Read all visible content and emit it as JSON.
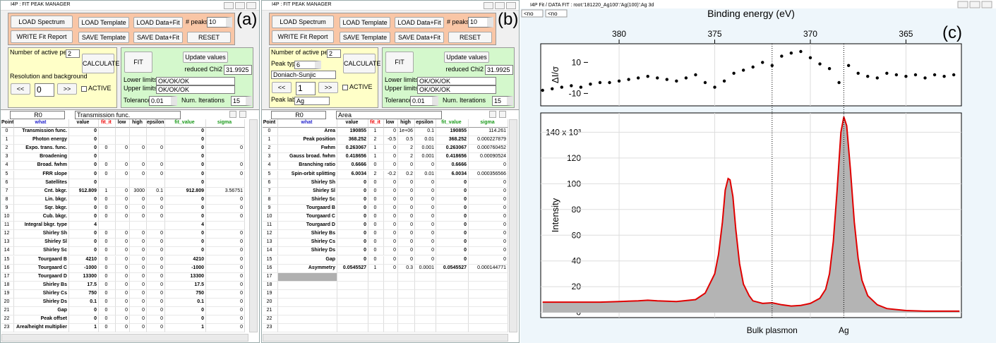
{
  "panel_a": {
    "window_title": "I4P : FIT PEAK MANAGER",
    "label": "(a)",
    "buttons": {
      "load_spectrum": "LOAD Spectrum",
      "write_report": "WRITE Fit Report",
      "load_template": "LOAD Template",
      "save_template": "SAVE Template",
      "load_data_fit": "LOAD Data+Fit",
      "save_data_fit": "SAVE Data+Fit",
      "reset": "RESET",
      "calculate": "CALCULATE",
      "prev": "<<",
      "next": ">>",
      "fit": "FIT",
      "update": "Update values"
    },
    "fields": {
      "peaks_label": "# peaks",
      "peaks": 10,
      "active_peaks_label": "Number of active peaks",
      "active_peaks": 2,
      "section_label": "Resolution and background",
      "index": 0,
      "active_label": "ACTIVE",
      "chi2_label": "reduced Chi2",
      "chi2": 31.9925,
      "lower_label": "Lower limits",
      "lower": "OK/OK/OK",
      "upper_label": "Upper limits",
      "upper": "OK/OK/OK",
      "tolerance_label": "Tolerance",
      "tolerance": 0.01,
      "iterations_label": "Num. Iterations",
      "iterations": 15
    },
    "table": {
      "cell": "R0",
      "selection": "Transmission func.",
      "columns": [
        "Point",
        "what",
        "value",
        "fit_it",
        "low",
        "high",
        "epsilon",
        "fit_value",
        "sigma"
      ],
      "rows": [
        [
          0,
          "Transmission func.",
          0,
          null,
          null,
          null,
          null,
          0,
          null
        ],
        [
          1,
          "Photon energy",
          0,
          null,
          null,
          null,
          null,
          0,
          null
        ],
        [
          2,
          "Expo. trans. func.",
          0,
          0,
          0,
          0,
          0,
          0,
          0
        ],
        [
          3,
          "Broadening",
          0,
          null,
          null,
          null,
          null,
          0,
          null
        ],
        [
          4,
          "Broad. fwhm",
          0,
          0,
          0,
          0,
          0,
          0,
          0
        ],
        [
          5,
          "FRR slope",
          0,
          0,
          0,
          0,
          0,
          0,
          0
        ],
        [
          6,
          "Satellites",
          0,
          null,
          null,
          null,
          null,
          0,
          null
        ],
        [
          7,
          "Cnt. bkgr.",
          912.809,
          1,
          0,
          3000,
          0.1,
          912.809,
          3.56751
        ],
        [
          8,
          "Lin. bkgr.",
          0,
          0,
          0,
          0,
          0,
          0,
          0
        ],
        [
          9,
          "Sqr. bkgr.",
          0,
          0,
          0,
          0,
          0,
          0,
          0
        ],
        [
          10,
          "Cub. bkgr.",
          0,
          0,
          0,
          0,
          0,
          0,
          0
        ],
        [
          11,
          "Integral bkgr. type",
          4,
          null,
          null,
          null,
          null,
          4,
          null
        ],
        [
          12,
          "Shirley Sh",
          0,
          0,
          0,
          0,
          0,
          0,
          0
        ],
        [
          13,
          "Shirley Sl",
          0,
          0,
          0,
          0,
          0,
          0,
          0
        ],
        [
          14,
          "Shirley Sc",
          0,
          0,
          0,
          0,
          0,
          0,
          0
        ],
        [
          15,
          "Tourgaard B",
          4210,
          0,
          0,
          0,
          0,
          4210,
          0
        ],
        [
          16,
          "Tourgaard C",
          -1000,
          0,
          0,
          0,
          0,
          -1000,
          0
        ],
        [
          17,
          "Tourgaard D",
          13300,
          0,
          0,
          0,
          0,
          13300,
          0
        ],
        [
          18,
          "Shirley Bs",
          17.5,
          0,
          0,
          0,
          0,
          17.5,
          0
        ],
        [
          19,
          "Shirley Cs",
          750,
          0,
          0,
          0,
          0,
          750,
          0
        ],
        [
          20,
          "Shirley Ds",
          0.1,
          0,
          0,
          0,
          0,
          0.1,
          0
        ],
        [
          21,
          "Gap",
          0,
          0,
          0,
          0,
          0,
          0,
          0
        ],
        [
          22,
          "Peak offset",
          0,
          0,
          0,
          0,
          0,
          0,
          0
        ],
        [
          23,
          "Area/height multiplier",
          1,
          0,
          0,
          0,
          0,
          1,
          0
        ]
      ]
    }
  },
  "panel_b": {
    "window_title": "I4P : FIT PEAK MANAGER",
    "label": "(b)",
    "buttons": {
      "load_spectrum": "LOAD Spectrum",
      "write_report": "WRITE Fit Report",
      "load_template": "LOAD Template",
      "save_template": "SAVE Template",
      "load_data_fit": "LOAD Data+Fit",
      "save_data_fit": "SAVE Data+Fit",
      "reset": "RESET",
      "calculate": "CALCULATE",
      "prev": "<<",
      "next": ">>",
      "fit": "FIT",
      "update": "Update values"
    },
    "fields": {
      "peaks_label": "# peaks",
      "peaks": 10,
      "active_peaks_label": "Number of active peaks",
      "active_peaks": 2,
      "peak_type_label": "Peak type",
      "peak_type": 6,
      "peak_shape": "Doniach-Sunjic",
      "index": 1,
      "active_label": "ACTIVE",
      "peak_label_label": "Peak label",
      "peak_label": "Ag",
      "chi2_label": "reduced Chi2",
      "chi2": 31.9925,
      "lower_label": "Lower limits",
      "lower": "OK/OK/OK",
      "upper_label": "Upper limits",
      "upper": "OK/OK/OK",
      "tolerance_label": "Tolerance",
      "tolerance": 0.01,
      "iterations_label": "Num. Iterations",
      "iterations": 15
    },
    "table": {
      "cell": "R0",
      "selection": "Area",
      "columns": [
        "Point",
        "what",
        "value",
        "fit_it",
        "low",
        "high",
        "epsilon",
        "fit_value",
        "sigma"
      ],
      "rows": [
        [
          0,
          "Area",
          190855,
          1,
          0,
          "1e+06",
          0.1,
          190855,
          114.261
        ],
        [
          1,
          "Peak position",
          368.252,
          2,
          -0.5,
          0.5,
          0.01,
          368.252,
          0.000227879
        ],
        [
          2,
          "Fwhm",
          0.263067,
          1,
          0,
          2,
          0.001,
          0.263067,
          0.000760452
        ],
        [
          3,
          "Gauss broad. fwhm",
          0.418656,
          1,
          0,
          2,
          0.001,
          0.418656,
          0.00090524
        ],
        [
          4,
          "Branching ratio",
          0.6666,
          0,
          0,
          0,
          0,
          0.6666,
          0
        ],
        [
          5,
          "Spin-orbit splitting",
          6.0034,
          2,
          -0.2,
          0.2,
          0.01,
          6.0034,
          0.000356566
        ],
        [
          6,
          "Shirley Sh",
          0,
          0,
          0,
          0,
          0,
          0,
          0
        ],
        [
          7,
          "Shirley Sl",
          0,
          0,
          0,
          0,
          0,
          0,
          0
        ],
        [
          8,
          "Shirley Sc",
          0,
          0,
          0,
          0,
          0,
          0,
          0
        ],
        [
          9,
          "Tourgaard B",
          0,
          0,
          0,
          0,
          0,
          0,
          0
        ],
        [
          10,
          "Tourgaard C",
          0,
          0,
          0,
          0,
          0,
          0,
          0
        ],
        [
          11,
          "Tourgaard D",
          0,
          0,
          0,
          0,
          0,
          0,
          0
        ],
        [
          12,
          "Shirley Bs",
          0,
          0,
          0,
          0,
          0,
          0,
          0
        ],
        [
          13,
          "Shirley Cs",
          0,
          0,
          0,
          0,
          0,
          0,
          0
        ],
        [
          14,
          "Shirley Ds",
          0,
          0,
          0,
          0,
          0,
          0,
          0
        ],
        [
          15,
          "Gap",
          0,
          0,
          0,
          0,
          0,
          0,
          0
        ],
        [
          16,
          "Asymmetry",
          0.0545527,
          1,
          0,
          0.3,
          0.0001,
          0.0545527,
          0.000144771
        ],
        [
          17,
          null,
          null,
          null,
          null,
          null,
          null,
          null,
          null
        ],
        [
          18,
          null,
          null,
          null,
          null,
          null,
          null,
          null,
          null
        ],
        [
          19,
          null,
          null,
          null,
          null,
          null,
          null,
          null,
          null
        ],
        [
          20,
          null,
          null,
          null,
          null,
          null,
          null,
          null,
          null
        ],
        [
          21,
          null,
          null,
          null,
          null,
          null,
          null,
          null,
          null
        ],
        [
          22,
          null,
          null,
          null,
          null,
          null,
          null,
          null,
          null
        ],
        [
          23,
          null,
          null,
          null,
          null,
          null,
          null,
          null,
          null
        ]
      ]
    }
  },
  "panel_c": {
    "window_title": "I4P Fit / DATA FIT : root:'181220_Ag100':'Ag(100)':Ag 3d",
    "selectors": [
      "<no",
      "<no"
    ]
  },
  "chart_data": {
    "type": "line",
    "label": "(c)",
    "xlabel": "Binding energy (eV)",
    "xlim": [
      384.1,
      362.1
    ],
    "xticks": [
      380,
      375,
      370,
      365
    ],
    "grid": true,
    "residual": {
      "ylabel": "ΔI/σ",
      "ylim": [
        -18,
        22
      ],
      "yticks": [
        -10,
        10
      ],
      "color": "#000000",
      "x": [
        384,
        383.5,
        383,
        382.5,
        382,
        381.5,
        381,
        380.5,
        380,
        379.5,
        379,
        378.5,
        378,
        377.5,
        377,
        376.5,
        376,
        375.5,
        375,
        374.5,
        374,
        373.5,
        373,
        372.5,
        372,
        371.5,
        371,
        370.5,
        370,
        369.5,
        369,
        368.5,
        368,
        367.5,
        367,
        366.5,
        366,
        365.5,
        365,
        364.5,
        364,
        363.5,
        363,
        362.5
      ],
      "values": [
        -8,
        -7,
        -6,
        -5,
        -6,
        -4,
        -3,
        -3,
        -2,
        -1,
        0,
        1,
        0,
        -1,
        -2,
        0,
        2,
        -3,
        -6,
        -2,
        3,
        5,
        7,
        10,
        8,
        14,
        16,
        17,
        13,
        9,
        6,
        -3,
        8,
        3,
        1,
        0,
        3,
        2,
        1,
        2,
        0,
        2,
        1,
        2
      ]
    },
    "main": {
      "ylabel": "Intensity",
      "ylim": [
        -4,
        155
      ],
      "yticks": [
        0,
        20,
        40,
        60,
        80,
        100,
        120,
        {
          "value": 140,
          "label": "140 x 10³"
        }
      ],
      "color": "#e00000",
      "fill": "#b4b4b4",
      "x": [
        384,
        383,
        382,
        381,
        380,
        379,
        378.5,
        378,
        377,
        376,
        375.5,
        375,
        374.8,
        374.6,
        374.45,
        374.3,
        374.2,
        374.05,
        373.9,
        373.7,
        373.5,
        373.2,
        373,
        372.5,
        372,
        371.5,
        371,
        370.5,
        370,
        369.5,
        369.2,
        369,
        368.8,
        368.6,
        368.4,
        368.25,
        368.1,
        367.9,
        367.7,
        367.5,
        367.3,
        367,
        366.5,
        366,
        365,
        364,
        363,
        362.2
      ],
      "values": [
        8,
        8,
        8,
        8,
        8.5,
        9,
        9.5,
        9,
        8.5,
        10,
        15,
        30,
        45,
        70,
        95,
        104,
        103,
        90,
        65,
        38,
        22,
        13,
        9,
        7,
        7.5,
        6,
        5,
        5.5,
        7,
        11,
        18,
        30,
        55,
        95,
        140,
        152,
        145,
        110,
        70,
        42,
        25,
        13,
        6,
        3,
        1.5,
        1,
        1,
        1
      ]
    },
    "annotations": [
      {
        "text": "Bulk plasmon",
        "x": 372.0
      },
      {
        "text": "Ag",
        "x": 368.25
      }
    ]
  }
}
